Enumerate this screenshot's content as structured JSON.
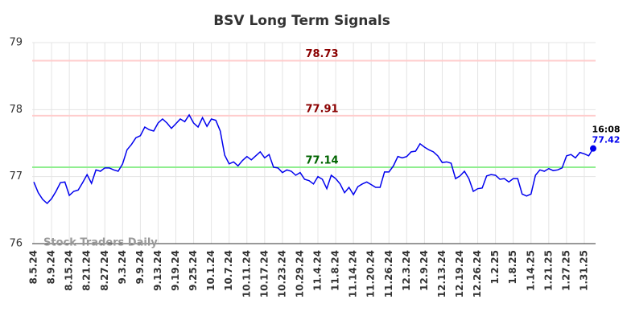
{
  "chart_data": {
    "type": "line",
    "title": "BSV Long Term Signals",
    "watermark": "Stock Traders Daily",
    "categories": [
      "8.5.24",
      null,
      null,
      null,
      "8.9.24",
      null,
      null,
      null,
      "8.15.24",
      null,
      null,
      null,
      "8.21.24",
      null,
      null,
      null,
      "8.27.24",
      null,
      null,
      null,
      "9.3.24",
      null,
      null,
      null,
      "9.9.24",
      null,
      null,
      null,
      "9.13.24",
      null,
      null,
      null,
      "9.19.24",
      null,
      null,
      null,
      "9.25.24",
      null,
      null,
      null,
      "10.1.24",
      null,
      null,
      null,
      "10.7.24",
      null,
      null,
      null,
      "10.11.24",
      null,
      null,
      null,
      "10.17.24",
      null,
      null,
      null,
      "10.23.24",
      null,
      null,
      null,
      "10.29.24",
      null,
      null,
      null,
      "11.4.24",
      null,
      null,
      null,
      "11.8.24",
      null,
      null,
      null,
      "11.14.24",
      null,
      null,
      null,
      "11.20.24",
      null,
      null,
      null,
      "11.26.24",
      null,
      null,
      null,
      "12.3.24",
      null,
      null,
      null,
      "12.9.24",
      null,
      null,
      null,
      "12.13.24",
      null,
      null,
      null,
      "12.19.24",
      null,
      null,
      null,
      "12.26.24",
      null,
      null,
      null,
      "1.2.25",
      null,
      null,
      null,
      "1.8.25",
      null,
      null,
      null,
      "1.14.25",
      null,
      null,
      null,
      "1.21.25",
      null,
      null,
      null,
      "1.27.25",
      null,
      null,
      null,
      "1.31.25",
      null,
      null
    ],
    "series": [
      {
        "color": "#0000ee",
        "values": [
          76.92,
          76.76,
          76.66,
          76.6,
          76.67,
          76.78,
          76.91,
          76.92,
          76.72,
          76.78,
          76.8,
          76.91,
          77.03,
          76.9,
          77.1,
          77.08,
          77.13,
          77.13,
          77.1,
          77.08,
          77.19,
          77.4,
          77.48,
          77.58,
          77.61,
          77.74,
          77.7,
          77.68,
          77.8,
          77.86,
          77.8,
          77.72,
          77.79,
          77.86,
          77.82,
          77.92,
          77.8,
          77.74,
          77.88,
          77.75,
          77.86,
          77.84,
          77.68,
          77.32,
          77.19,
          77.22,
          77.16,
          77.24,
          77.3,
          77.25,
          77.31,
          77.37,
          77.28,
          77.33,
          77.14,
          77.13,
          77.06,
          77.1,
          77.08,
          77.02,
          77.06,
          76.96,
          76.94,
          76.89,
          77.0,
          76.96,
          76.82,
          77.02,
          76.97,
          76.89,
          76.76,
          76.84,
          76.73,
          76.85,
          76.89,
          76.92,
          76.88,
          76.84,
          76.84,
          77.07,
          77.07,
          77.16,
          77.3,
          77.28,
          77.3,
          77.37,
          77.38,
          77.49,
          77.44,
          77.4,
          77.37,
          77.31,
          77.21,
          77.22,
          77.2,
          76.97,
          77.01,
          77.08,
          76.97,
          76.78,
          76.82,
          76.83,
          77.01,
          77.03,
          77.02,
          76.96,
          76.97,
          76.92,
          76.97,
          76.97,
          76.74,
          76.71,
          76.74,
          77.02,
          77.1,
          77.08,
          77.12,
          77.09,
          77.1,
          77.13,
          77.31,
          77.33,
          77.28,
          77.36,
          77.34,
          77.31,
          77.42
        ]
      }
    ],
    "last_time": "16:08",
    "hlines": [
      {
        "value": 78.73,
        "color": "#ffcccc",
        "label_color": "#8b0000"
      },
      {
        "value": 77.91,
        "color": "#ffcccc",
        "label_color": "#8b0000"
      },
      {
        "value": 77.14,
        "color": "#90ee90",
        "label_color": "#006400"
      }
    ],
    "ylim": [
      76,
      79
    ],
    "yticks": [
      76,
      77,
      78,
      79
    ],
    "grid": true
  }
}
